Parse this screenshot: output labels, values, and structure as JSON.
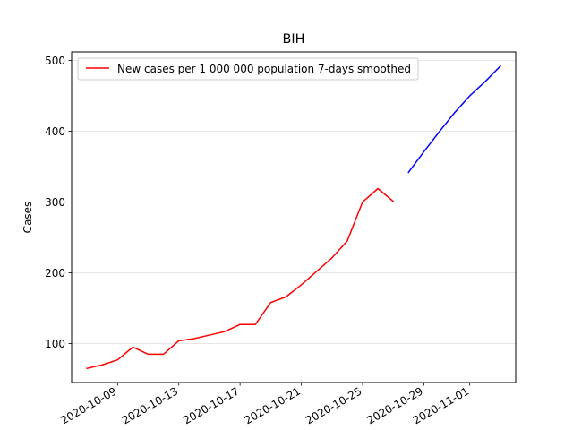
{
  "chart_data": {
    "type": "line",
    "title": "BIH",
    "xlabel": "",
    "ylabel": "Cases",
    "grid": "horizontal",
    "legend_position": "top-left",
    "xlim": [
      "2020-10-06",
      "2020-11-04"
    ],
    "ylim": [
      45,
      512
    ],
    "x_ticks": [
      "2020-10-09",
      "2020-10-13",
      "2020-10-17",
      "2020-10-21",
      "2020-10-25",
      "2020-10-29",
      "2020-11-01"
    ],
    "y_ticks": [
      100,
      200,
      300,
      400,
      500
    ],
    "series": [
      {
        "name": "New cases per 1 000 000 population 7-days smoothed",
        "color": "#ff0000",
        "x": [
          "2020-10-07",
          "2020-10-08",
          "2020-10-09",
          "2020-10-10",
          "2020-10-11",
          "2020-10-12",
          "2020-10-13",
          "2020-10-14",
          "2020-10-15",
          "2020-10-16",
          "2020-10-17",
          "2020-10-18",
          "2020-10-19",
          "2020-10-20",
          "2020-10-21",
          "2020-10-22",
          "2020-10-23",
          "2020-10-24",
          "2020-10-25",
          "2020-10-26",
          "2020-10-27"
        ],
        "y": [
          65,
          70,
          77,
          95,
          85,
          85,
          104,
          107,
          112,
          117,
          127,
          127,
          158,
          166,
          183,
          202,
          221,
          245,
          300,
          319,
          301
        ]
      },
      {
        "color": "#0000ff",
        "x": [
          "2020-10-28",
          "2020-10-29",
          "2020-10-30",
          "2020-10-31",
          "2020-11-01",
          "2020-11-02",
          "2020-11-03"
        ],
        "y": [
          342,
          371,
          399,
          426,
          450,
          470,
          492
        ]
      }
    ]
  }
}
